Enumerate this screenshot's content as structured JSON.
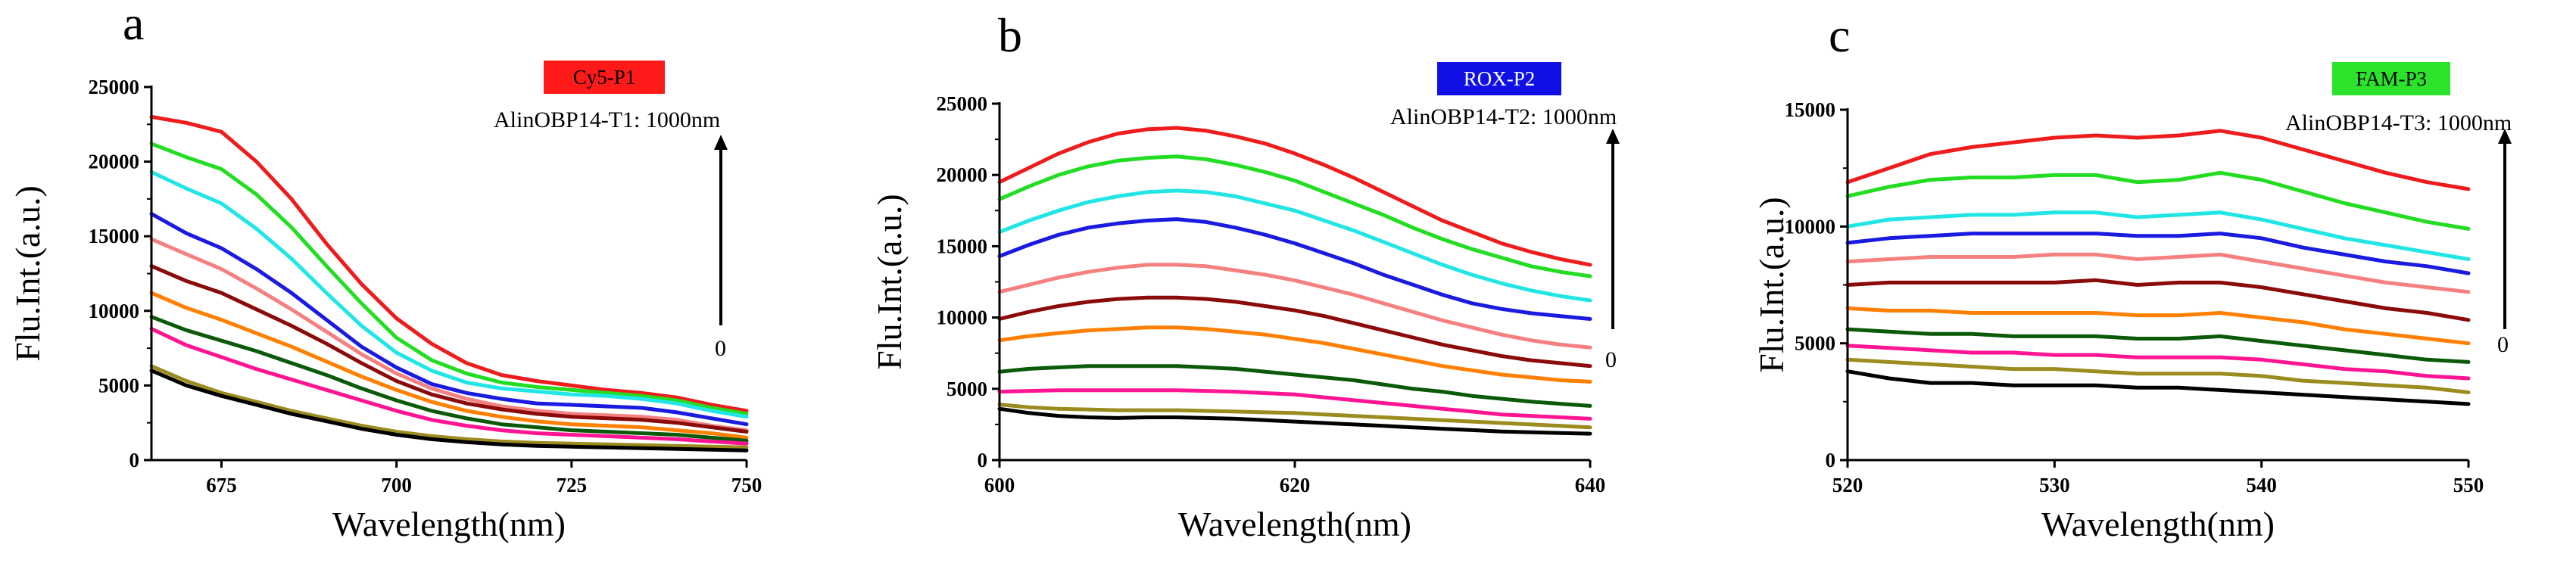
{
  "chart_data": [
    {
      "type": "line",
      "panel": "a",
      "legend_label": "Cy5-P1",
      "legend_color": "#ff1a1a",
      "legend_text_color": "#000000",
      "annotation": "AlinOBP14-T1: 1000nm",
      "arrow_bottom_label": "0",
      "xlabel": "Wavelength(nm)",
      "ylabel": "Flu.Int.(a.u.)",
      "xlim": [
        665,
        750
      ],
      "ylim": [
        0,
        25000
      ],
      "xticks": [
        675,
        700,
        725,
        750
      ],
      "yticks": [
        0,
        5000,
        10000,
        15000,
        20000,
        25000
      ],
      "x": [
        665,
        670,
        675,
        680,
        685,
        690,
        695,
        700,
        705,
        710,
        715,
        720,
        725,
        730,
        735,
        740,
        745,
        750
      ],
      "series": [
        {
          "name": "1000nm",
          "color": "#ee1c1c",
          "values": [
            23000,
            22600,
            22000,
            20000,
            17500,
            14500,
            11800,
            9500,
            7800,
            6500,
            5700,
            5300,
            5000,
            4700,
            4500,
            4200,
            3700,
            3300
          ]
        },
        {
          "name": "s2",
          "color": "#22dd22",
          "values": [
            21200,
            20300,
            19500,
            17800,
            15600,
            13000,
            10500,
            8200,
            6700,
            5800,
            5200,
            4900,
            4700,
            4500,
            4300,
            4000,
            3500,
            3100
          ]
        },
        {
          "name": "s3",
          "color": "#22e5e5",
          "values": [
            19300,
            18200,
            17200,
            15500,
            13500,
            11200,
            9000,
            7200,
            6000,
            5200,
            4800,
            4600,
            4400,
            4300,
            4100,
            3800,
            3300,
            2900
          ]
        },
        {
          "name": "s4",
          "color": "#1a1ae0",
          "values": [
            16500,
            15200,
            14200,
            12800,
            11200,
            9400,
            7600,
            6200,
            5100,
            4500,
            4100,
            3800,
            3700,
            3600,
            3500,
            3200,
            2800,
            2400
          ]
        },
        {
          "name": "s5",
          "color": "#f58080",
          "values": [
            14800,
            13800,
            12800,
            11500,
            10100,
            8600,
            7100,
            5800,
            4800,
            4100,
            3600,
            3300,
            3100,
            3000,
            2900,
            2700,
            2300,
            2000
          ]
        },
        {
          "name": "s6",
          "color": "#8b0a0a",
          "values": [
            13000,
            12000,
            11200,
            10100,
            9000,
            7800,
            6500,
            5300,
            4400,
            3800,
            3400,
            3100,
            2900,
            2800,
            2700,
            2500,
            2200,
            1900
          ]
        },
        {
          "name": "s7",
          "color": "#ff8000",
          "values": [
            11200,
            10200,
            9400,
            8500,
            7600,
            6600,
            5600,
            4700,
            3900,
            3300,
            2900,
            2600,
            2400,
            2300,
            2200,
            2000,
            1800,
            1500
          ]
        },
        {
          "name": "s8",
          "color": "#0a5a0a",
          "values": [
            9600,
            8700,
            8000,
            7300,
            6500,
            5700,
            4800,
            4000,
            3300,
            2800,
            2400,
            2200,
            2000,
            1900,
            1800,
            1700,
            1500,
            1300
          ]
        },
        {
          "name": "s9",
          "color": "#ff1493",
          "values": [
            8800,
            7700,
            6900,
            6100,
            5400,
            4700,
            4000,
            3300,
            2700,
            2300,
            2000,
            1800,
            1700,
            1600,
            1500,
            1400,
            1250,
            1100
          ]
        },
        {
          "name": "s10",
          "color": "#9a8c1e",
          "values": [
            6300,
            5300,
            4500,
            3900,
            3300,
            2800,
            2300,
            1900,
            1600,
            1400,
            1250,
            1150,
            1100,
            1050,
            1000,
            950,
            900,
            850
          ]
        },
        {
          "name": "0",
          "color": "#000000",
          "values": [
            6000,
            5000,
            4300,
            3700,
            3100,
            2600,
            2100,
            1700,
            1400,
            1200,
            1050,
            950,
            900,
            850,
            800,
            750,
            700,
            650
          ]
        }
      ]
    },
    {
      "type": "line",
      "panel": "b",
      "legend_label": "ROX-P2",
      "legend_color": "#1010e6",
      "legend_text_color": "#ffffff",
      "annotation": "AlinOBP14-T2: 1000nm",
      "arrow_bottom_label": "0",
      "xlabel": "Wavelength(nm)",
      "ylabel": "Flu.Int.(a.u.)",
      "xlim": [
        600,
        640
      ],
      "ylim": [
        0,
        25000
      ],
      "xticks": [
        600,
        620,
        640
      ],
      "yticks": [
        0,
        5000,
        10000,
        15000,
        20000,
        25000
      ],
      "x": [
        600,
        602,
        604,
        606,
        608,
        610,
        612,
        614,
        616,
        618,
        620,
        622,
        624,
        626,
        628,
        630,
        632,
        634,
        636,
        638,
        640
      ],
      "series": [
        {
          "name": "1000nm",
          "color": "#ee1c1c",
          "values": [
            19500,
            20500,
            21500,
            22300,
            22900,
            23200,
            23300,
            23100,
            22700,
            22200,
            21500,
            20700,
            19800,
            18800,
            17800,
            16800,
            16000,
            15200,
            14600,
            14100,
            13700
          ]
        },
        {
          "name": "s2",
          "color": "#22dd22",
          "values": [
            18300,
            19200,
            20000,
            20600,
            21000,
            21200,
            21300,
            21100,
            20700,
            20200,
            19600,
            18800,
            18000,
            17200,
            16300,
            15500,
            14800,
            14200,
            13600,
            13200,
            12900
          ]
        },
        {
          "name": "s3",
          "color": "#22e5e5",
          "values": [
            16000,
            16800,
            17500,
            18100,
            18500,
            18800,
            18900,
            18800,
            18500,
            18000,
            17500,
            16800,
            16100,
            15300,
            14500,
            13700,
            13000,
            12400,
            11900,
            11500,
            11200
          ]
        },
        {
          "name": "s4",
          "color": "#1a1ae0",
          "values": [
            14300,
            15100,
            15800,
            16300,
            16600,
            16800,
            16900,
            16700,
            16300,
            15800,
            15200,
            14500,
            13800,
            13000,
            12300,
            11600,
            11000,
            10600,
            10300,
            10100,
            9900
          ]
        },
        {
          "name": "s5",
          "color": "#f58080",
          "values": [
            11800,
            12300,
            12800,
            13200,
            13500,
            13700,
            13700,
            13600,
            13300,
            13000,
            12600,
            12100,
            11600,
            11000,
            10400,
            9800,
            9300,
            8800,
            8400,
            8100,
            7900
          ]
        },
        {
          "name": "s6",
          "color": "#8b0a0a",
          "values": [
            9900,
            10400,
            10800,
            11100,
            11300,
            11400,
            11400,
            11300,
            11100,
            10800,
            10500,
            10100,
            9600,
            9100,
            8600,
            8100,
            7700,
            7300,
            7000,
            6800,
            6600
          ]
        },
        {
          "name": "s7",
          "color": "#ff8000",
          "values": [
            8400,
            8700,
            8900,
            9100,
            9200,
            9300,
            9300,
            9200,
            9000,
            8800,
            8500,
            8200,
            7800,
            7400,
            7000,
            6600,
            6300,
            6000,
            5800,
            5600,
            5500
          ]
        },
        {
          "name": "s8",
          "color": "#0a5a0a",
          "values": [
            6200,
            6400,
            6500,
            6600,
            6600,
            6600,
            6600,
            6500,
            6400,
            6200,
            6000,
            5800,
            5600,
            5300,
            5000,
            4800,
            4500,
            4300,
            4100,
            3950,
            3800
          ]
        },
        {
          "name": "s9",
          "color": "#ff1493",
          "values": [
            4800,
            4850,
            4900,
            4900,
            4900,
            4900,
            4900,
            4850,
            4800,
            4700,
            4600,
            4400,
            4200,
            4000,
            3800,
            3600,
            3400,
            3200,
            3100,
            3000,
            2900
          ]
        },
        {
          "name": "s10",
          "color": "#9a8c1e",
          "values": [
            3900,
            3700,
            3600,
            3550,
            3500,
            3500,
            3500,
            3450,
            3400,
            3350,
            3300,
            3200,
            3100,
            3000,
            2900,
            2800,
            2700,
            2600,
            2500,
            2400,
            2300
          ]
        },
        {
          "name": "0",
          "color": "#000000",
          "values": [
            3600,
            3300,
            3100,
            3000,
            2950,
            3000,
            3000,
            2950,
            2900,
            2800,
            2700,
            2600,
            2500,
            2400,
            2300,
            2200,
            2100,
            2000,
            1950,
            1900,
            1850
          ]
        }
      ]
    },
    {
      "type": "line",
      "panel": "c",
      "legend_label": "FAM-P3",
      "legend_color": "#2ae32a",
      "legend_text_color": "#000000",
      "annotation": "AlinOBP14-T3: 1000nm",
      "arrow_bottom_label": "0",
      "xlabel": "Wavelength(nm)",
      "ylabel": "Flu.Int.(a.u.)",
      "xlim": [
        520,
        550
      ],
      "ylim": [
        0,
        15000
      ],
      "xticks": [
        520,
        530,
        540,
        550
      ],
      "yticks": [
        0,
        5000,
        10000,
        15000
      ],
      "x": [
        520,
        522,
        524,
        526,
        528,
        530,
        532,
        534,
        536,
        538,
        540,
        542,
        544,
        546,
        548,
        550
      ],
      "series": [
        {
          "name": "1000nm",
          "color": "#ee1c1c",
          "values": [
            11900,
            12500,
            13100,
            13400,
            13600,
            13800,
            13900,
            13800,
            13900,
            14100,
            13800,
            13300,
            12800,
            12300,
            11900,
            11600
          ]
        },
        {
          "name": "s2",
          "color": "#22dd22",
          "values": [
            11300,
            11700,
            12000,
            12100,
            12100,
            12200,
            12200,
            11900,
            12000,
            12300,
            12000,
            11500,
            11000,
            10600,
            10200,
            9900
          ]
        },
        {
          "name": "s3",
          "color": "#22e5e5",
          "values": [
            10000,
            10300,
            10400,
            10500,
            10500,
            10600,
            10600,
            10400,
            10500,
            10600,
            10300,
            9900,
            9500,
            9200,
            8900,
            8600
          ]
        },
        {
          "name": "s4",
          "color": "#1a1ae0",
          "values": [
            9300,
            9500,
            9600,
            9700,
            9700,
            9700,
            9700,
            9600,
            9600,
            9700,
            9500,
            9100,
            8800,
            8500,
            8300,
            8000
          ]
        },
        {
          "name": "s5",
          "color": "#f58080",
          "values": [
            8500,
            8600,
            8700,
            8700,
            8700,
            8800,
            8800,
            8600,
            8700,
            8800,
            8500,
            8200,
            7900,
            7600,
            7400,
            7200
          ]
        },
        {
          "name": "s6",
          "color": "#8b0a0a",
          "values": [
            7500,
            7600,
            7600,
            7600,
            7600,
            7600,
            7700,
            7500,
            7600,
            7600,
            7400,
            7100,
            6800,
            6500,
            6300,
            6000
          ]
        },
        {
          "name": "s7",
          "color": "#ff8000",
          "values": [
            6500,
            6400,
            6400,
            6300,
            6300,
            6300,
            6300,
            6200,
            6200,
            6300,
            6100,
            5900,
            5600,
            5400,
            5200,
            5000
          ]
        },
        {
          "name": "s8",
          "color": "#0a5a0a",
          "values": [
            5600,
            5500,
            5400,
            5400,
            5300,
            5300,
            5300,
            5200,
            5200,
            5300,
            5100,
            4900,
            4700,
            4500,
            4300,
            4200
          ]
        },
        {
          "name": "s9",
          "color": "#ff1493",
          "values": [
            4900,
            4800,
            4700,
            4600,
            4600,
            4500,
            4500,
            4400,
            4400,
            4400,
            4300,
            4100,
            3900,
            3800,
            3600,
            3500
          ]
        },
        {
          "name": "s10",
          "color": "#9a8c1e",
          "values": [
            4300,
            4200,
            4100,
            4000,
            3900,
            3900,
            3800,
            3700,
            3700,
            3700,
            3600,
            3400,
            3300,
            3200,
            3100,
            2900
          ]
        },
        {
          "name": "0",
          "color": "#000000",
          "values": [
            3800,
            3500,
            3300,
            3300,
            3200,
            3200,
            3200,
            3100,
            3100,
            3000,
            2900,
            2800,
            2700,
            2600,
            2500,
            2400
          ]
        }
      ]
    }
  ]
}
